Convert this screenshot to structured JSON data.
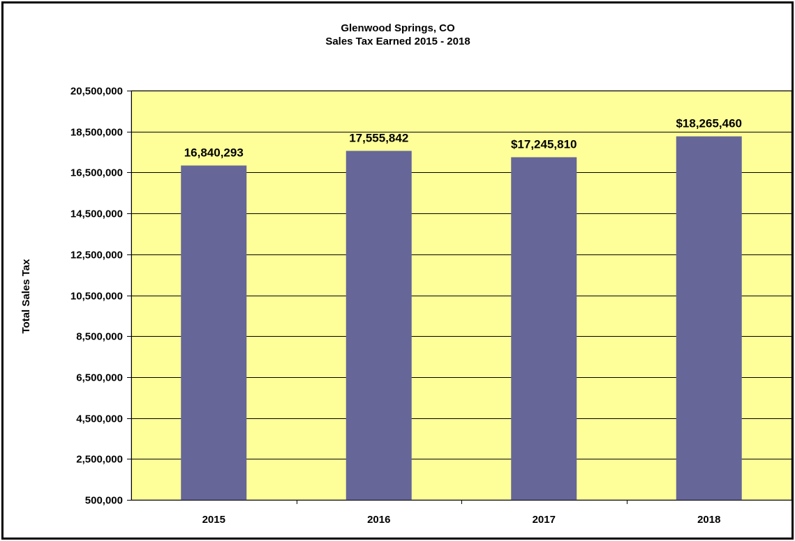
{
  "chart_data": {
    "type": "bar",
    "title": "Glenwood Springs, CO",
    "subtitle": "Sales Tax Earned 2015 - 2018",
    "ylabel": "Total Sales Tax",
    "xlabel": "",
    "categories": [
      "2015",
      "2016",
      "2017",
      "2018"
    ],
    "values": [
      16840293,
      17555842,
      17245810,
      18265460
    ],
    "data_labels": [
      "16,840,293",
      "17,555,842",
      "$17,245,810",
      "$18,265,460"
    ],
    "ylim": [
      500000,
      20500000
    ],
    "yticks": [
      500000,
      2500000,
      4500000,
      6500000,
      8500000,
      10500000,
      12500000,
      14500000,
      16500000,
      18500000,
      20500000
    ],
    "ytick_labels": [
      "500,000",
      "2,500,000",
      "4,500,000",
      "6,500,000",
      "8,500,000",
      "10,500,000",
      "12,500,000",
      "14,500,000",
      "16,500,000",
      "18,500,000",
      "20,500,000"
    ],
    "grid": true,
    "legend": "none",
    "colors": {
      "bar": "#666699",
      "plot_background": "#FFFF99",
      "gridline": "#000000",
      "frame_border": "#000000"
    }
  }
}
